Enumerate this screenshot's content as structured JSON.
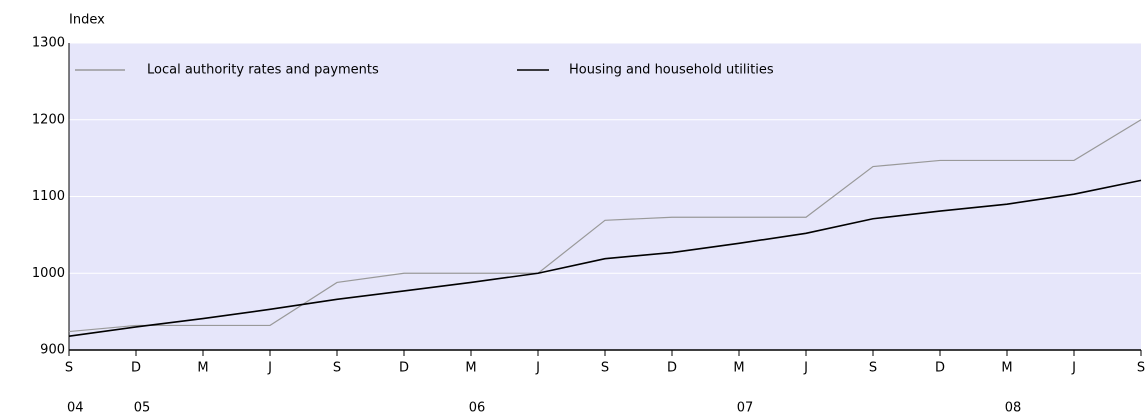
{
  "chart_data": {
    "type": "line",
    "y_label": "Index",
    "categories": [
      "S",
      "D",
      "M",
      "J",
      "S",
      "D",
      "M",
      "J",
      "S",
      "D",
      "M",
      "J",
      "S",
      "D",
      "M",
      "J",
      "S"
    ],
    "category_years": [
      "04",
      "05",
      null,
      null,
      null,
      null,
      "06",
      null,
      null,
      null,
      "07",
      null,
      null,
      null,
      "08",
      null,
      null
    ],
    "series": [
      {
        "name": "Local authority rates and payments",
        "color": "#999999",
        "values": [
          924,
          932,
          932,
          932,
          988,
          1000,
          1000,
          1000,
          1069,
          1073,
          1073,
          1073,
          1139,
          1147,
          1147,
          1147,
          1200
        ]
      },
      {
        "name": "Housing and household utilities",
        "color": "#000000",
        "values": [
          918,
          930,
          941,
          953,
          966,
          977,
          988,
          1000,
          1019,
          1027,
          1039,
          1052,
          1071,
          1081,
          1090,
          1103,
          1121
        ]
      }
    ],
    "ylim": [
      900,
      1300
    ],
    "yticks": [
      900,
      1000,
      1100,
      1200,
      1300
    ],
    "grid": true,
    "background": "#e6e6fa",
    "legend": "top-left"
  }
}
